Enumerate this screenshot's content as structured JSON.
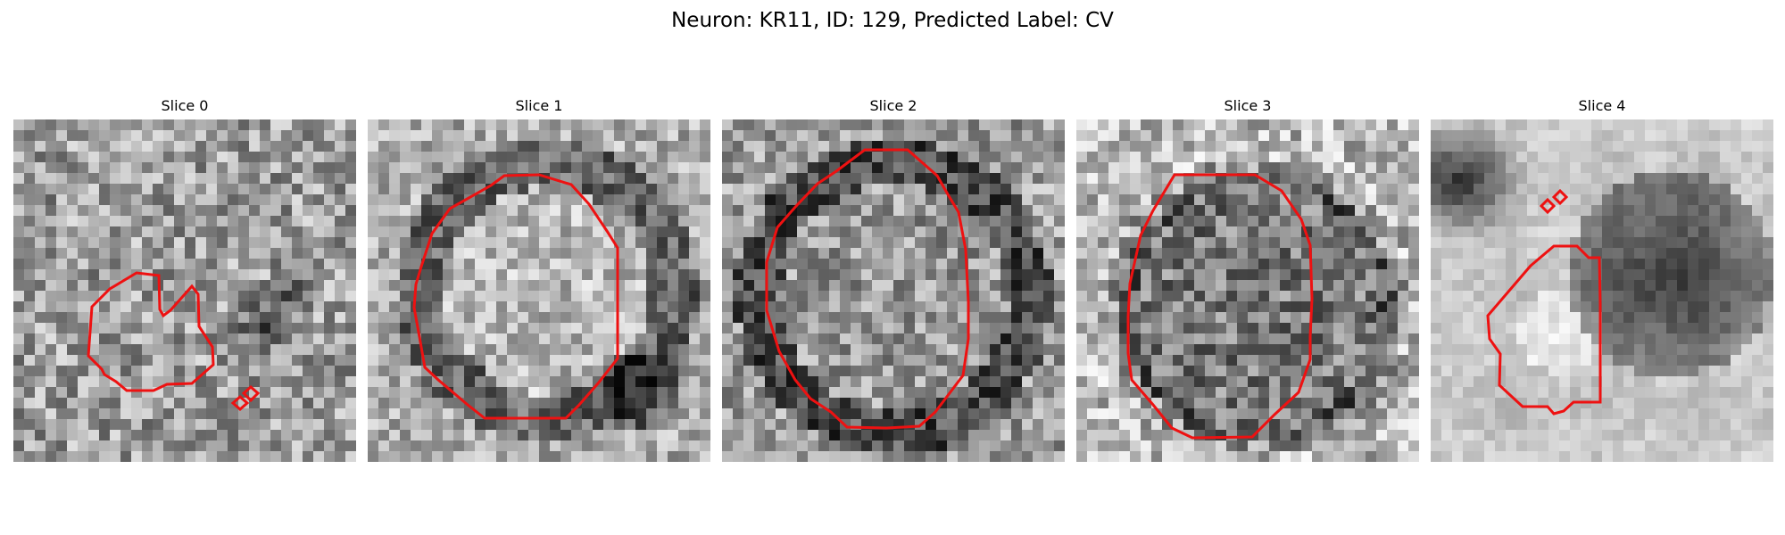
{
  "figure": {
    "title": "Neuron: KR11, ID: 129, Predicted Label: CV"
  },
  "panels": [
    {
      "title": "Slice 0"
    },
    {
      "title": "Slice 1"
    },
    {
      "title": "Slice 2"
    },
    {
      "title": "Slice 3"
    },
    {
      "title": "Slice 4"
    }
  ],
  "colors": {
    "contour": "#ee1111",
    "image_colormap": "grayscale"
  }
}
